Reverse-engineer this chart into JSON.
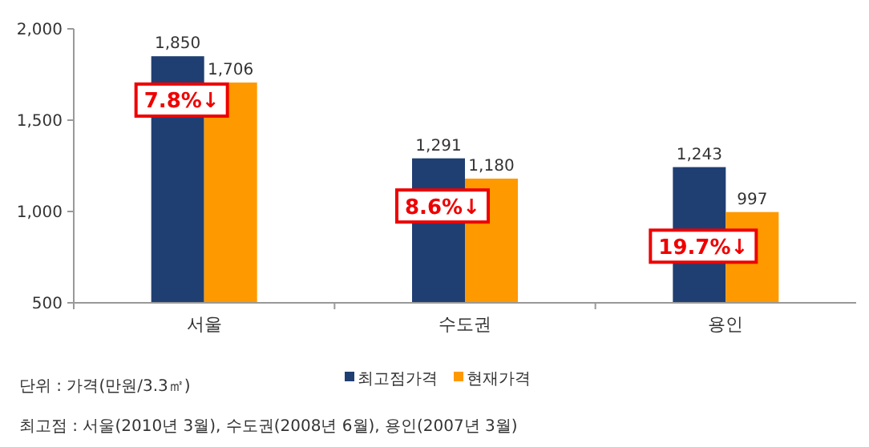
{
  "chart_data": {
    "type": "bar",
    "categories": [
      "서울",
      "수도권",
      "용인"
    ],
    "series": [
      {
        "name": "최고점가격",
        "color": "#1f3f73",
        "values": [
          1850,
          1291,
          1243
        ],
        "value_labels": [
          "1,850",
          "1,291",
          "1,243"
        ]
      },
      {
        "name": "현재가격",
        "color": "#ff9900",
        "values": [
          1706,
          1180,
          997
        ],
        "value_labels": [
          "1,706",
          "1,180",
          "997"
        ]
      }
    ],
    "ylim": [
      500,
      2000
    ],
    "yticks": [
      {
        "value": 500,
        "label": "500"
      },
      {
        "value": 1000,
        "label": "1,000"
      },
      {
        "value": 1500,
        "label": "1,500"
      },
      {
        "value": 2000,
        "label": "2,000"
      }
    ],
    "legend": "bottom",
    "annotations": [
      {
        "text": "7.8%↓",
        "x": "서울",
        "y": 1610
      },
      {
        "text": "8.6%↓",
        "x": "수도권",
        "y": 1030
      },
      {
        "text": "19.7%↓",
        "x": "용인",
        "y": 810
      },
      "단위 : 가격(만원/3.3㎡)",
      "최고점 : 서울(2010년 3월), 수도권(2008년 6월), 용인(2007년 3월)"
    ]
  }
}
